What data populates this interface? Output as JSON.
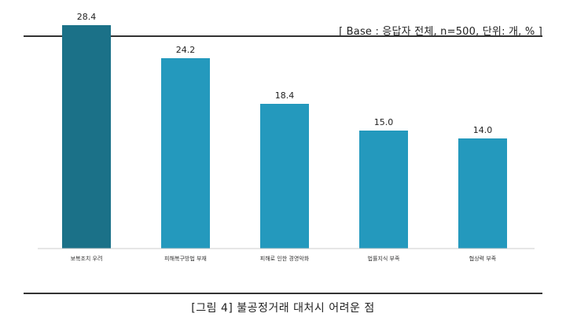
{
  "base_note": "[ Base : 응답자 전체, n=500, 단위: 개, % ]",
  "caption": "[그림 4] 불공정거래 대처시 어려운 점",
  "colors": {
    "highlight": "#1b7188",
    "bar": "#2499bd",
    "axis": "#cccccc"
  },
  "chart_data": {
    "type": "bar",
    "title": "",
    "xlabel": "",
    "ylabel": "",
    "ylim": [
      0,
      30
    ],
    "categories": [
      "보복조치 우려",
      "피해복구방법 부재",
      "피해로 인한 경영악화",
      "법률지식 부족",
      "협상력 부족"
    ],
    "values": [
      28.4,
      24.2,
      18.4,
      15.0,
      14.0
    ],
    "value_labels": [
      "28.4",
      "24.2",
      "18.4",
      "15.0",
      "14.0"
    ],
    "grid": false,
    "legend": "none"
  }
}
